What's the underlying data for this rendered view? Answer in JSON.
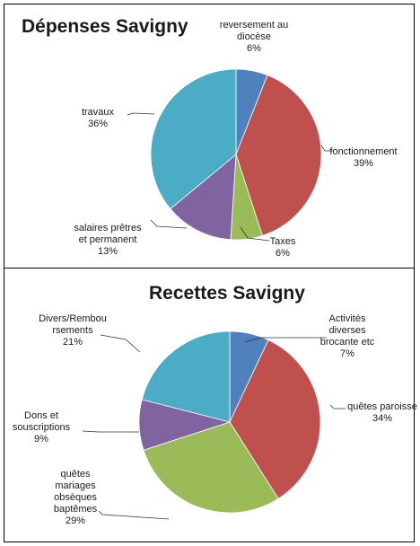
{
  "chart_data": [
    {
      "type": "pie",
      "title": "Dépenses Savigny",
      "start_angle_deg": 0,
      "slices": [
        {
          "lines": [
            "reversement au",
            "diocèse"
          ],
          "pct": "6%",
          "value": 6,
          "color": "#4f81bd"
        },
        {
          "lines": [
            "fonctionnement"
          ],
          "pct": "39%",
          "value": 39,
          "color": "#c0504d"
        },
        {
          "lines": [
            "Taxes"
          ],
          "pct": "6%",
          "value": 6,
          "color": "#9bbb59"
        },
        {
          "lines": [
            "salaires prêtres",
            "et permanent"
          ],
          "pct": "13%",
          "value": 13,
          "color": "#8064a2"
        },
        {
          "lines": [
            "travaux"
          ],
          "pct": "36%",
          "value": 36,
          "color": "#4bacc6"
        }
      ]
    },
    {
      "type": "pie",
      "title": "Recettes Savigny",
      "start_angle_deg": 0,
      "slices": [
        {
          "lines": [
            "Activités",
            "diverses",
            "brocante etc"
          ],
          "pct": "7%",
          "value": 7,
          "color": "#4f81bd"
        },
        {
          "lines": [
            "quêtes paroisse"
          ],
          "pct": "34%",
          "value": 34,
          "color": "#c0504d"
        },
        {
          "lines": [
            "quêtes",
            "mariages",
            "obsèques",
            "baptêmes"
          ],
          "pct": "29%",
          "value": 29,
          "color": "#9bbb59"
        },
        {
          "lines": [
            "Dons et",
            "souscriptions"
          ],
          "pct": "9%",
          "value": 9,
          "color": "#8064a2"
        },
        {
          "lines": [
            "Divers/Rembou",
            "rsements"
          ],
          "pct": "21%",
          "value": 21,
          "color": "#4bacc6"
        }
      ]
    }
  ]
}
